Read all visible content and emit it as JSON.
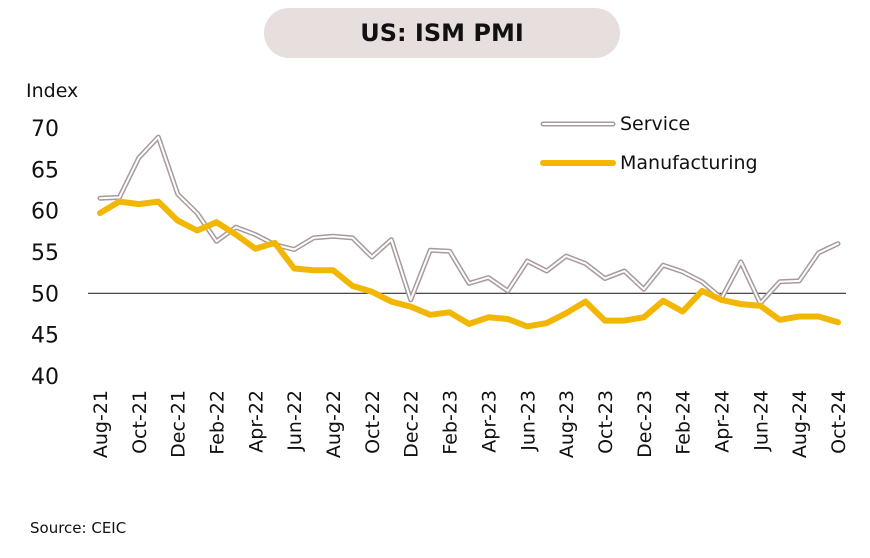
{
  "chart_data": {
    "type": "line",
    "title": "US: ISM PMI",
    "ylabel": "Index",
    "source": "Source: CEIC",
    "ylim": [
      40,
      70
    ],
    "yticks": [
      40,
      45,
      50,
      55,
      60,
      65,
      70
    ],
    "reference_line": 50,
    "x": [
      "Aug-21",
      "Sep-21",
      "Oct-21",
      "Nov-21",
      "Dec-21",
      "Jan-22",
      "Feb-22",
      "Mar-22",
      "Apr-22",
      "May-22",
      "Jun-22",
      "Jul-22",
      "Aug-22",
      "Sep-22",
      "Oct-22",
      "Nov-22",
      "Dec-22",
      "Jan-23",
      "Feb-23",
      "Mar-23",
      "Apr-23",
      "May-23",
      "Jun-23",
      "Jul-23",
      "Aug-23",
      "Sep-23",
      "Oct-23",
      "Nov-23",
      "Dec-23",
      "Jan-24",
      "Feb-24",
      "Mar-24",
      "Apr-24",
      "May-24",
      "Jun-24",
      "Jul-24",
      "Aug-24",
      "Sep-24",
      "Oct-24"
    ],
    "xtick_labels": [
      "Aug-21",
      "Oct-21",
      "Dec-21",
      "Feb-22",
      "Apr-22",
      "Jun-22",
      "Aug-22",
      "Oct-22",
      "Dec-22",
      "Feb-23",
      "Apr-23",
      "Jun-23",
      "Aug-23",
      "Oct-23",
      "Dec-23",
      "Feb-24",
      "Apr-24",
      "Jun-24",
      "Aug-24",
      "Oct-24"
    ],
    "legend_position": "top-right",
    "series": [
      {
        "name": "Service",
        "color": "#a89a9a",
        "style": "double-line",
        "values": [
          61.5,
          61.6,
          66.4,
          68.9,
          62.0,
          59.7,
          56.3,
          58.0,
          57.1,
          55.9,
          55.3,
          56.7,
          56.9,
          56.7,
          54.4,
          56.5,
          49.2,
          55.2,
          55.1,
          51.2,
          51.9,
          50.3,
          53.9,
          52.7,
          54.5,
          53.6,
          51.8,
          52.7,
          50.5,
          53.4,
          52.6,
          51.4,
          49.4,
          53.8,
          48.8,
          51.4,
          51.5,
          54.9,
          56.0
        ]
      },
      {
        "name": "Manufacturing",
        "color": "#f2b705",
        "style": "thick-line",
        "values": [
          59.7,
          61.1,
          60.8,
          61.1,
          58.8,
          57.6,
          58.6,
          57.1,
          55.4,
          56.1,
          53.0,
          52.8,
          52.8,
          50.9,
          50.2,
          49.0,
          48.4,
          47.4,
          47.7,
          46.3,
          47.1,
          46.9,
          46.0,
          46.4,
          47.6,
          49.0,
          46.7,
          46.7,
          47.1,
          49.1,
          47.8,
          50.3,
          49.2,
          48.7,
          48.5,
          46.8,
          47.2,
          47.2,
          46.5
        ]
      }
    ]
  }
}
